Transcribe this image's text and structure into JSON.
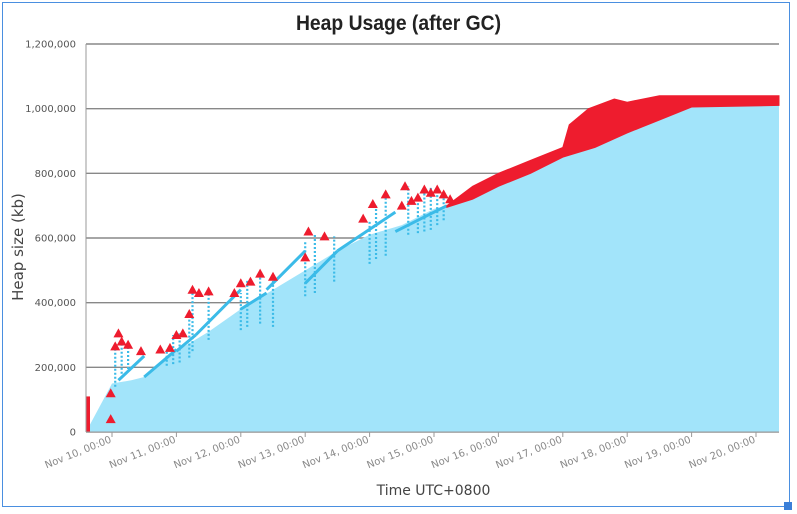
{
  "chart_data": {
    "type": "area",
    "title": "Heap Usage (after GC)",
    "xlabel": "Time UTC+0800",
    "ylabel": "Heap size (kb)",
    "ylim": [
      0,
      1200000
    ],
    "xlim": [
      0,
      10.7
    ],
    "y_ticks": [
      0,
      200000,
      400000,
      600000,
      800000,
      1000000,
      1200000
    ],
    "y_tick_labels": [
      "0",
      "200,000",
      "400,000",
      "600,000",
      "800,000",
      "1,000,000",
      "1,200,000"
    ],
    "x_ticks": [
      0,
      1,
      2,
      3,
      4,
      5,
      6,
      7,
      8,
      9,
      10
    ],
    "x_tick_labels": [
      "Nov 10, 00:00",
      "Nov 11, 00:00",
      "Nov 12, 00:00",
      "Nov 13, 00:00",
      "Nov 14, 00:00",
      "Nov 15, 00:00",
      "Nov 16, 00:00",
      "Nov 17, 00:00",
      "Nov 18, 00:00",
      "Nov 19, 00:00",
      "Nov 20, 00:00"
    ],
    "grid": true,
    "colors": {
      "area": "#a2e4fa",
      "line": "#3bbbe8",
      "markers": "#ee1c2e",
      "grid": "#888888"
    },
    "area_outline": [
      [
        0,
        150000
      ],
      [
        0.3,
        160000
      ],
      [
        0.5,
        170000
      ],
      [
        1,
        250000
      ],
      [
        1.5,
        310000
      ],
      [
        2,
        380000
      ],
      [
        2.5,
        440000
      ],
      [
        3,
        500000
      ],
      [
        3.5,
        560000
      ],
      [
        4,
        610000
      ],
      [
        4.5,
        640000
      ],
      [
        5,
        690000
      ],
      [
        5.2,
        700000
      ],
      [
        5.6,
        730000
      ],
      [
        6,
        760000
      ],
      [
        6.5,
        810000
      ],
      [
        7,
        860000
      ],
      [
        7.5,
        900000
      ],
      [
        8,
        930000
      ],
      [
        8.5,
        970000
      ],
      [
        9,
        1010000
      ],
      [
        10.7,
        1010000
      ]
    ],
    "trend_segments": [
      [
        [
          0.1,
          160000
        ],
        [
          0.5,
          235000
        ]
      ],
      [
        [
          0.5,
          170000
        ],
        [
          1.0,
          255000
        ]
      ],
      [
        [
          1.0,
          250000
        ],
        [
          1.3,
          300000
        ]
      ],
      [
        [
          1.3,
          300000
        ],
        [
          2.0,
          440000
        ]
      ],
      [
        [
          2.0,
          380000
        ],
        [
          2.4,
          430000
        ]
      ],
      [
        [
          2.4,
          440000
        ],
        [
          3.0,
          560000
        ]
      ],
      [
        [
          3.0,
          460000
        ],
        [
          3.5,
          560000
        ]
      ],
      [
        [
          3.5,
          560000
        ],
        [
          4.4,
          680000
        ]
      ],
      [
        [
          4.4,
          620000
        ],
        [
          5.2,
          700000
        ]
      ]
    ],
    "gc_spikes": [
      [
        0.05,
        140000,
        265000
      ],
      [
        0.15,
        180000,
        280000
      ],
      [
        0.25,
        195000,
        270000
      ],
      [
        0.85,
        205000,
        255000
      ],
      [
        0.95,
        210000,
        300000
      ],
      [
        1.05,
        215000,
        305000
      ],
      [
        1.2,
        230000,
        365000
      ],
      [
        1.25,
        250000,
        440000
      ],
      [
        1.5,
        285000,
        435000
      ],
      [
        2.0,
        315000,
        430000
      ],
      [
        2.1,
        325000,
        470000
      ],
      [
        2.3,
        335000,
        490000
      ],
      [
        2.5,
        325000,
        480000
      ],
      [
        3.0,
        420000,
        590000
      ],
      [
        3.15,
        430000,
        610000
      ],
      [
        3.45,
        465000,
        605000
      ],
      [
        4.0,
        520000,
        655000
      ],
      [
        4.1,
        535000,
        700000
      ],
      [
        4.25,
        545000,
        735000
      ],
      [
        4.6,
        610000,
        760000
      ],
      [
        4.75,
        615000,
        725000
      ],
      [
        4.85,
        620000,
        750000
      ],
      [
        4.95,
        625000,
        760000
      ],
      [
        5.05,
        640000,
        745000
      ],
      [
        5.15,
        655000,
        735000
      ]
    ],
    "red_markers": [
      [
        -0.02,
        120000
      ],
      [
        -0.02,
        40000
      ],
      [
        0.05,
        265000
      ],
      [
        0.1,
        305000
      ],
      [
        0.15,
        280000
      ],
      [
        0.25,
        270000
      ],
      [
        0.45,
        250000
      ],
      [
        0.75,
        255000
      ],
      [
        0.9,
        260000
      ],
      [
        1.0,
        300000
      ],
      [
        1.1,
        305000
      ],
      [
        1.2,
        365000
      ],
      [
        1.25,
        440000
      ],
      [
        1.35,
        430000
      ],
      [
        1.5,
        435000
      ],
      [
        1.9,
        430000
      ],
      [
        2.0,
        460000
      ],
      [
        2.15,
        465000
      ],
      [
        2.3,
        490000
      ],
      [
        2.5,
        480000
      ],
      [
        3.0,
        540000
      ],
      [
        3.05,
        620000
      ],
      [
        3.3,
        605000
      ],
      [
        3.9,
        660000
      ],
      [
        4.05,
        705000
      ],
      [
        4.25,
        735000
      ],
      [
        4.5,
        700000
      ],
      [
        4.55,
        760000
      ],
      [
        4.65,
        715000
      ],
      [
        4.75,
        725000
      ],
      [
        4.85,
        750000
      ],
      [
        4.95,
        740000
      ],
      [
        5.05,
        750000
      ],
      [
        5.15,
        735000
      ],
      [
        5.25,
        720000
      ]
    ],
    "red_band_top": [
      [
        5.2,
        700000
      ],
      [
        5.6,
        760000
      ],
      [
        6.0,
        800000
      ],
      [
        6.5,
        840000
      ],
      [
        7.0,
        880000
      ],
      [
        7.1,
        950000
      ],
      [
        7.4,
        1000000
      ],
      [
        7.8,
        1030000
      ],
      [
        8.0,
        1020000
      ],
      [
        8.5,
        1040000
      ],
      [
        9.0,
        1040000
      ],
      [
        10.7,
        1040000
      ]
    ],
    "red_band_bottom": [
      [
        5.2,
        695000
      ],
      [
        5.6,
        720000
      ],
      [
        6.0,
        760000
      ],
      [
        6.5,
        800000
      ],
      [
        7.0,
        850000
      ],
      [
        7.5,
        880000
      ],
      [
        8.0,
        925000
      ],
      [
        8.5,
        965000
      ],
      [
        9.0,
        1005000
      ],
      [
        10.7,
        1010000
      ]
    ]
  }
}
